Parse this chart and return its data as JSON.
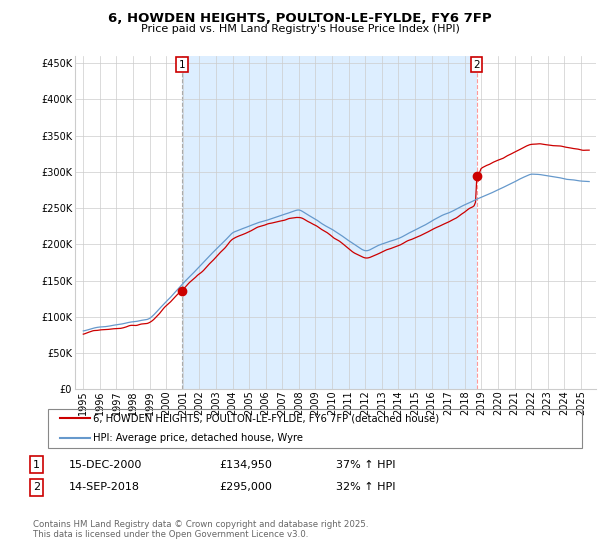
{
  "title": "6, HOWDEN HEIGHTS, POULTON-LE-FYLDE, FY6 7FP",
  "subtitle": "Price paid vs. HM Land Registry's House Price Index (HPI)",
  "legend_line1": "6, HOWDEN HEIGHTS, POULTON-LE-FYLDE, FY6 7FP (detached house)",
  "legend_line2": "HPI: Average price, detached house, Wyre",
  "annotation1_label": "1",
  "annotation1_date": "15-DEC-2000",
  "annotation1_price": "£134,950",
  "annotation1_hpi": "37% ↑ HPI",
  "annotation2_label": "2",
  "annotation2_date": "14-SEP-2018",
  "annotation2_price": "£295,000",
  "annotation2_hpi": "32% ↑ HPI",
  "footer": "Contains HM Land Registry data © Crown copyright and database right 2025.\nThis data is licensed under the Open Government Licence v3.0.",
  "red_color": "#cc0000",
  "blue_color": "#6699cc",
  "vline1_color": "#bbbbbb",
  "vline2_color": "#ff8888",
  "shade_color": "#ddeeff",
  "ylim": [
    0,
    460000
  ],
  "yticks": [
    0,
    50000,
    100000,
    150000,
    200000,
    250000,
    300000,
    350000,
    400000,
    450000
  ],
  "purchase1_year": 2000.958,
  "purchase2_year": 2018.708,
  "purchase1_price": 134950,
  "purchase2_price": 295000
}
